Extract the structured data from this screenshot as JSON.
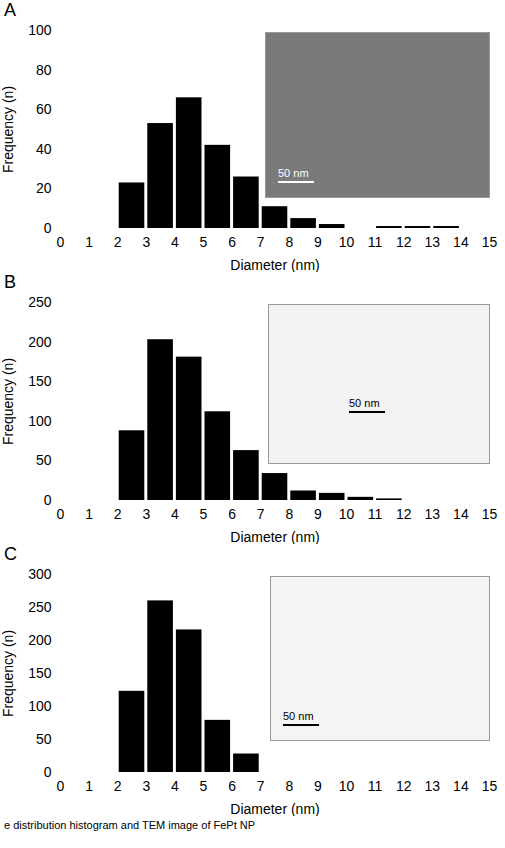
{
  "chart_data": [
    {
      "type": "histogram",
      "title": "A",
      "x_label": "Diameter (nm)",
      "y_label": "Frequency (n)",
      "bins": [
        0,
        1,
        2,
        3,
        4,
        5,
        6,
        7,
        8,
        9,
        10,
        11,
        12,
        13,
        14,
        15
      ],
      "values": [
        0,
        0,
        23,
        53,
        66,
        42,
        26,
        11,
        5,
        2,
        0,
        1,
        1,
        1,
        0
      ],
      "color": "#000000",
      "xlim": [
        0,
        15
      ],
      "xticks": [
        0,
        1,
        2,
        3,
        4,
        5,
        6,
        7,
        8,
        9,
        10,
        11,
        12,
        13,
        14,
        15
      ],
      "ylim": [
        0,
        100
      ],
      "yticks": [
        0,
        20,
        40,
        60,
        80,
        100
      ],
      "grid": false,
      "inset_label": "50 nm"
    },
    {
      "type": "histogram",
      "title": "B",
      "x_label": "Diameter (nm)",
      "y_label": "Frequency (n)",
      "bins": [
        0,
        1,
        2,
        3,
        4,
        5,
        6,
        7,
        8,
        9,
        10,
        11,
        12,
        13,
        14,
        15
      ],
      "values": [
        0,
        0,
        88,
        203,
        181,
        112,
        63,
        34,
        12,
        9,
        4,
        2,
        0,
        0,
        0
      ],
      "color": "#000000",
      "xlim": [
        0,
        15
      ],
      "xticks": [
        0,
        1,
        2,
        3,
        4,
        5,
        6,
        7,
        8,
        9,
        10,
        11,
        12,
        13,
        14,
        15
      ],
      "ylim": [
        0,
        250
      ],
      "yticks": [
        0,
        50,
        100,
        150,
        200,
        250
      ],
      "grid": false,
      "inset_label": "50 nm"
    },
    {
      "type": "histogram",
      "title": "C",
      "x_label": "Diameter (nm)",
      "y_label": "Frequency (n)",
      "bins": [
        0,
        1,
        2,
        3,
        4,
        5,
        6,
        7,
        8,
        9,
        10,
        11,
        12,
        13,
        14,
        15
      ],
      "values": [
        0,
        0,
        123,
        260,
        216,
        79,
        28,
        0,
        0,
        0,
        0,
        0,
        0,
        0,
        0
      ],
      "color": "#000000",
      "xlim": [
        0,
        15
      ],
      "xticks": [
        0,
        1,
        2,
        3,
        4,
        5,
        6,
        7,
        8,
        9,
        10,
        11,
        12,
        13,
        14,
        15
      ],
      "ylim": [
        0,
        300
      ],
      "yticks": [
        0,
        50,
        100,
        150,
        200,
        250,
        300
      ],
      "grid": false,
      "inset_label": "50 nm"
    }
  ],
  "caption": "e distribution histogram and TEM image of FePt NP"
}
